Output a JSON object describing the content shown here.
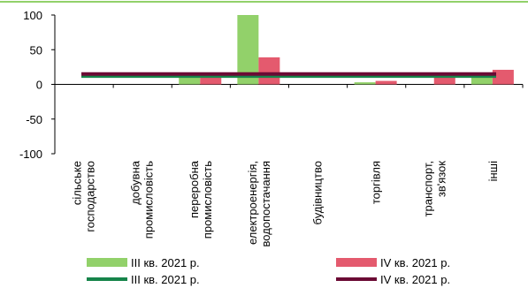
{
  "chart_data": {
    "type": "bar",
    "categories": [
      [
        "сільське",
        "господарство"
      ],
      [
        "добувна",
        "промисловість"
      ],
      [
        "переробна",
        "промисловість"
      ],
      [
        "електроенергія,",
        "водопостачання"
      ],
      [
        "будівництво"
      ],
      [
        "торгівля"
      ],
      [
        "транспорт,",
        "зв'язок"
      ],
      [
        "інші"
      ]
    ],
    "ylim": [
      -100,
      100
    ],
    "yticks": [
      -100,
      -50,
      0,
      50,
      100
    ],
    "grid": false,
    "series": [
      {
        "name": "III кв. 2021 р.",
        "kind": "bar",
        "color": "#92d16a",
        "values": [
          0,
          0,
          10,
          100,
          0,
          3,
          0,
          12
        ]
      },
      {
        "name": "IV кв. 2021 р.",
        "kind": "bar",
        "color": "#e45a6e",
        "values": [
          0,
          0,
          10,
          39,
          0,
          5,
          10,
          21
        ]
      },
      {
        "name": "III кв. 2021 р.",
        "kind": "line",
        "color": "#16844a",
        "values": [
          12,
          12,
          12,
          12,
          12,
          12,
          12,
          12
        ]
      },
      {
        "name": "IV кв. 2021 р.",
        "kind": "line",
        "color": "#6b0a34",
        "values": [
          15,
          15,
          15,
          15,
          15,
          15,
          15,
          15
        ]
      }
    ]
  },
  "colors": {
    "top_rule": "#92d16a",
    "axis": "#000000"
  }
}
